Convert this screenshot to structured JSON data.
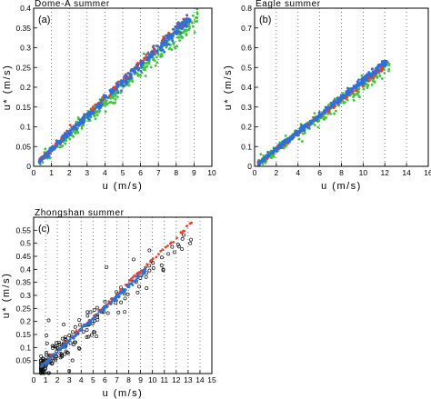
{
  "colors": {
    "red": "#e8412c",
    "green": "#3fc43f",
    "blue": "#2f6fd6",
    "black": "#111111",
    "grid": "#555555"
  },
  "chart_data": [
    {
      "type": "scatter",
      "title": "Dome-A summer",
      "panel_label": "(a)",
      "xlabel": "u (m/s)",
      "ylabel": "u* (m/s)",
      "xlim": [
        0,
        10
      ],
      "ylim": [
        0,
        0.4
      ],
      "x_ticks": [
        0,
        1,
        2,
        3,
        4,
        5,
        6,
        7,
        8,
        9,
        10
      ],
      "y_ticks": [
        0,
        0.05,
        0.1,
        0.15,
        0.2,
        0.25,
        0.3,
        0.35,
        0.4
      ],
      "x_tick_labels": [
        "0",
        "1",
        "2",
        "3",
        "4",
        "5",
        "6",
        "7",
        "8",
        "9",
        "10"
      ],
      "y_tick_labels": [
        "0",
        "0.05",
        "0.1",
        "0.15",
        "0.2",
        "0.25",
        "0.3",
        "0.35",
        "0.4"
      ],
      "grid": "vertical-dotted",
      "series": [
        {
          "color": "green",
          "slope": 0.0405,
          "x_range": [
            0.3,
            9.2
          ],
          "spread": 0.013,
          "count": 330
        },
        {
          "color": "red",
          "slope": 0.0435,
          "x_range": [
            0.3,
            8.6
          ],
          "spread": 0.006,
          "count": 200
        },
        {
          "color": "blue",
          "slope": 0.0425,
          "x_range": [
            0.3,
            8.8
          ],
          "spread": 0.008,
          "count": 380
        }
      ]
    },
    {
      "type": "scatter",
      "title": "Eagle summer",
      "panel_label": "(b)",
      "xlabel": "u (m/s)",
      "ylabel": "u* (m/s)",
      "xlim": [
        0,
        16
      ],
      "ylim": [
        0,
        0.8
      ],
      "x_ticks": [
        0,
        2,
        4,
        6,
        8,
        10,
        12,
        14,
        16
      ],
      "y_ticks": [
        0,
        0.1,
        0.2,
        0.3,
        0.4,
        0.5,
        0.6,
        0.7,
        0.8
      ],
      "x_tick_labels": [
        "0",
        "2",
        "4",
        "6",
        "8",
        "10",
        "12",
        "14",
        "16"
      ],
      "y_tick_labels": [
        "0",
        "0.1",
        "0.2",
        "0.3",
        "0.4",
        "0.5",
        "0.6",
        "0.7",
        "0.8"
      ],
      "grid": "vertical-dotted",
      "series": [
        {
          "color": "green",
          "slope": 0.0415,
          "x_range": [
            0.3,
            12.4
          ],
          "spread": 0.022,
          "count": 280
        },
        {
          "color": "red",
          "slope": 0.0425,
          "x_range": [
            0.3,
            11.8
          ],
          "spread": 0.009,
          "count": 200
        },
        {
          "color": "blue",
          "slope": 0.0435,
          "x_range": [
            0.3,
            12.2
          ],
          "spread": 0.01,
          "count": 380
        }
      ]
    },
    {
      "type": "scatter",
      "title": "Zhongshan summer",
      "panel_label": "(c)",
      "xlabel": "u (m/s)",
      "ylabel": "u* (m/s)",
      "xlim": [
        0,
        15
      ],
      "ylim": [
        0,
        0.6
      ],
      "x_ticks": [
        0,
        1,
        2,
        3,
        4,
        5,
        6,
        7,
        8,
        9,
        10,
        11,
        12,
        13,
        14,
        15
      ],
      "y_ticks": [
        0.05,
        0.1,
        0.15,
        0.2,
        0.25,
        0.3,
        0.35,
        0.4,
        0.45,
        0.5,
        0.55
      ],
      "x_tick_labels": [
        "0",
        "1",
        "2",
        "3",
        "4",
        "5",
        "6",
        "7",
        "8",
        "9",
        "10",
        "11",
        "12",
        "13",
        "14",
        "15"
      ],
      "y_tick_labels": [
        "0.05",
        "0.1",
        "0.15",
        "0.2",
        "0.25",
        "0.3",
        "0.35",
        "0.4",
        "0.45",
        "0.5",
        "0.55"
      ],
      "grid": "vertical-dotted",
      "series": [
        {
          "color": "black",
          "slope": 0.0405,
          "x_range": [
            0.6,
            13.5
          ],
          "spread": 0.04,
          "count": 190,
          "marker": "open-circle"
        },
        {
          "color": "red",
          "slope": 0.0435,
          "x_range": [
            1.0,
            13.3
          ],
          "spread": 0.005,
          "count": 70
        },
        {
          "color": "blue",
          "slope": 0.042,
          "x_range": [
            0.6,
            9.5
          ],
          "spread": 0.006,
          "count": 170
        }
      ]
    }
  ]
}
